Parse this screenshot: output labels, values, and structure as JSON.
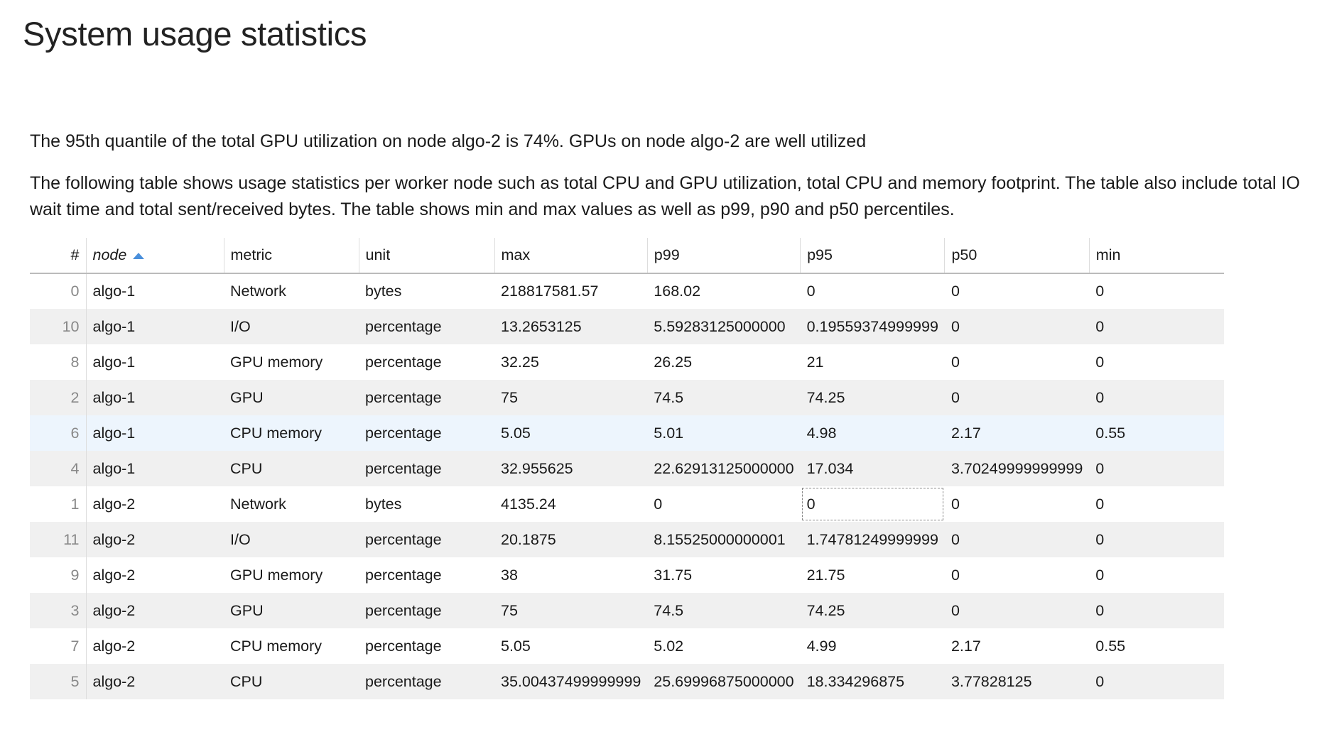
{
  "header": {
    "title": "System usage statistics"
  },
  "paragraphs": [
    "The 95th quantile of the total GPU utilization on node algo-2 is 74%. GPUs on node algo-2 are well utilized",
    "The following table shows usage statistics per worker node such as total CPU and GPU utilization, total CPU and memory footprint. The table also include total IO wait time and total sent/received bytes. The table shows min and max values as well as p99, p90 and p50 percentiles."
  ],
  "table": {
    "columns": [
      "#",
      "node",
      "metric",
      "unit",
      "max",
      "p99",
      "p95",
      "p50",
      "min"
    ],
    "rows": [
      [
        "0",
        "algo-1",
        "Network",
        "bytes",
        "218817581.57",
        "168.02",
        "0",
        "0",
        "0"
      ],
      [
        "10",
        "algo-1",
        "I/O",
        "percentage",
        "13.2653125",
        "5.59283125000000",
        "0.19559374999999",
        "0",
        "0"
      ],
      [
        "8",
        "algo-1",
        "GPU memory",
        "percentage",
        "32.25",
        "26.25",
        "21",
        "0",
        "0"
      ],
      [
        "2",
        "algo-1",
        "GPU",
        "percentage",
        "75",
        "74.5",
        "74.25",
        "0",
        "0"
      ],
      [
        "6",
        "algo-1",
        "CPU memory",
        "percentage",
        "5.05",
        "5.01",
        "4.98",
        "2.17",
        "0.55"
      ],
      [
        "4",
        "algo-1",
        "CPU",
        "percentage",
        "32.955625",
        "22.62913125000000",
        "17.034",
        "3.70249999999999",
        "0"
      ],
      [
        "1",
        "algo-2",
        "Network",
        "bytes",
        "4135.24",
        "0",
        "0",
        "0",
        "0"
      ],
      [
        "11",
        "algo-2",
        "I/O",
        "percentage",
        "20.1875",
        "8.15525000000001",
        "1.74781249999999",
        "0",
        "0"
      ],
      [
        "9",
        "algo-2",
        "GPU memory",
        "percentage",
        "38",
        "31.75",
        "21.75",
        "0",
        "0"
      ],
      [
        "3",
        "algo-2",
        "GPU",
        "percentage",
        "75",
        "74.5",
        "74.25",
        "0",
        "0"
      ],
      [
        "7",
        "algo-2",
        "CPU memory",
        "percentage",
        "5.05",
        "5.02",
        "4.99",
        "2.17",
        "0.55"
      ],
      [
        "5",
        "algo-2",
        "CPU",
        "percentage",
        "35.00437499999999",
        "25.69996875000000",
        "18.334296875",
        "3.77828125",
        "0"
      ]
    ]
  }
}
